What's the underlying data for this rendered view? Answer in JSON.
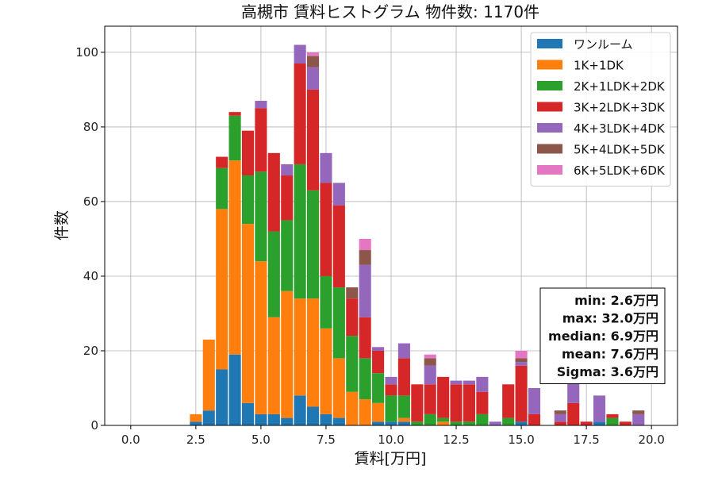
{
  "chart_data": {
    "type": "bar",
    "stacked": true,
    "title": "高槻市 賃料ヒストグラム 物件数: 1170件",
    "xlabel": "賃料[万円]",
    "ylabel": "件数",
    "xlim": [
      -1.0,
      21.0
    ],
    "ylim": [
      0,
      107
    ],
    "xticks": [
      0.0,
      2.5,
      5.0,
      7.5,
      10.0,
      12.5,
      15.0,
      17.5,
      20.0
    ],
    "xtick_labels": [
      "0.0",
      "2.5",
      "5.0",
      "7.5",
      "10.0",
      "12.5",
      "15.0",
      "17.5",
      "20.0"
    ],
    "yticks": [
      0,
      20,
      40,
      60,
      80,
      100
    ],
    "ytick_labels": [
      "0",
      "20",
      "40",
      "60",
      "80",
      "100"
    ],
    "grid": true,
    "legend_position": "top-right",
    "bin_width": 0.5,
    "bin_starts": [
      2.25,
      2.75,
      3.25,
      3.75,
      4.25,
      4.75,
      5.25,
      5.75,
      6.25,
      6.75,
      7.25,
      7.75,
      8.25,
      8.75,
      9.25,
      9.75,
      10.25,
      10.75,
      11.25,
      11.75,
      12.25,
      12.75,
      13.25,
      13.75,
      14.25,
      14.75,
      15.25,
      15.75,
      16.25,
      16.75,
      17.25,
      17.75,
      18.25,
      18.75,
      19.25
    ],
    "series": [
      {
        "name": "ワンルーム",
        "color": "#1f77b4",
        "values": [
          1,
          4,
          15,
          19,
          6,
          3,
          3,
          2,
          8,
          5,
          3,
          2,
          0,
          0,
          1,
          1,
          1,
          0,
          0,
          0,
          0,
          0,
          0,
          0,
          0,
          1,
          0,
          0,
          0,
          0,
          0,
          1,
          0,
          0,
          0
        ]
      },
      {
        "name": "1K+1DK",
        "color": "#ff7f0e",
        "values": [
          2,
          19,
          43,
          52,
          48,
          41,
          26,
          34,
          26,
          29,
          23,
          16,
          9,
          7,
          5,
          0,
          1,
          0,
          0,
          1,
          0,
          0,
          0,
          0,
          0,
          0,
          0,
          0,
          0,
          0,
          0,
          0,
          0,
          0,
          0
        ]
      },
      {
        "name": "2K+1LDK+2DK",
        "color": "#2ca02c",
        "values": [
          0,
          0,
          11,
          12,
          13,
          24,
          23,
          19,
          36,
          29,
          14,
          19,
          15,
          11,
          8,
          7,
          6,
          1,
          3,
          1,
          1,
          1,
          3,
          0,
          2,
          0,
          0,
          0,
          0,
          0,
          0,
          0,
          2,
          0,
          0
        ]
      },
      {
        "name": "3K+2LDK+3DK",
        "color": "#d62728",
        "values": [
          0,
          0,
          3,
          1,
          12,
          17,
          21,
          12,
          27,
          27,
          25,
          22,
          10,
          11,
          6,
          3,
          10,
          10,
          8,
          11,
          10,
          10,
          6,
          0,
          9,
          15,
          3,
          0,
          1,
          6,
          1,
          0,
          1,
          1,
          0
        ]
      },
      {
        "name": "4K+3LDK+4DK",
        "color": "#9467bd",
        "values": [
          0,
          0,
          0,
          0,
          0,
          2,
          0,
          3,
          5,
          6,
          8,
          6,
          0,
          14,
          1,
          2,
          4,
          0,
          5,
          0,
          1,
          1,
          4,
          1,
          0,
          1,
          7,
          0,
          2,
          6,
          0,
          7,
          0,
          0,
          3
        ]
      },
      {
        "name": "5K+4LDK+5DK",
        "color": "#8c564b",
        "values": [
          0,
          0,
          0,
          0,
          0,
          0,
          0,
          0,
          0,
          3,
          0,
          0,
          3,
          4,
          0,
          0,
          0,
          0,
          2,
          0,
          0,
          0,
          0,
          0,
          0,
          1,
          0,
          0,
          1,
          0,
          0,
          0,
          0,
          0,
          1
        ]
      },
      {
        "name": "6K+5LDK+6DK",
        "color": "#e377c2",
        "values": [
          0,
          0,
          0,
          0,
          0,
          0,
          0,
          0,
          0,
          1,
          0,
          0,
          0,
          3,
          0,
          0,
          0,
          0,
          1,
          0,
          0,
          0,
          0,
          0,
          0,
          2,
          0,
          0,
          0,
          0,
          0,
          0,
          0,
          0,
          0
        ]
      }
    ],
    "stats": [
      "min: 2.6万円",
      "max: 32.0万円",
      "median: 6.9万円",
      "mean: 7.6万円",
      "Sigma: 3.6万円"
    ]
  }
}
